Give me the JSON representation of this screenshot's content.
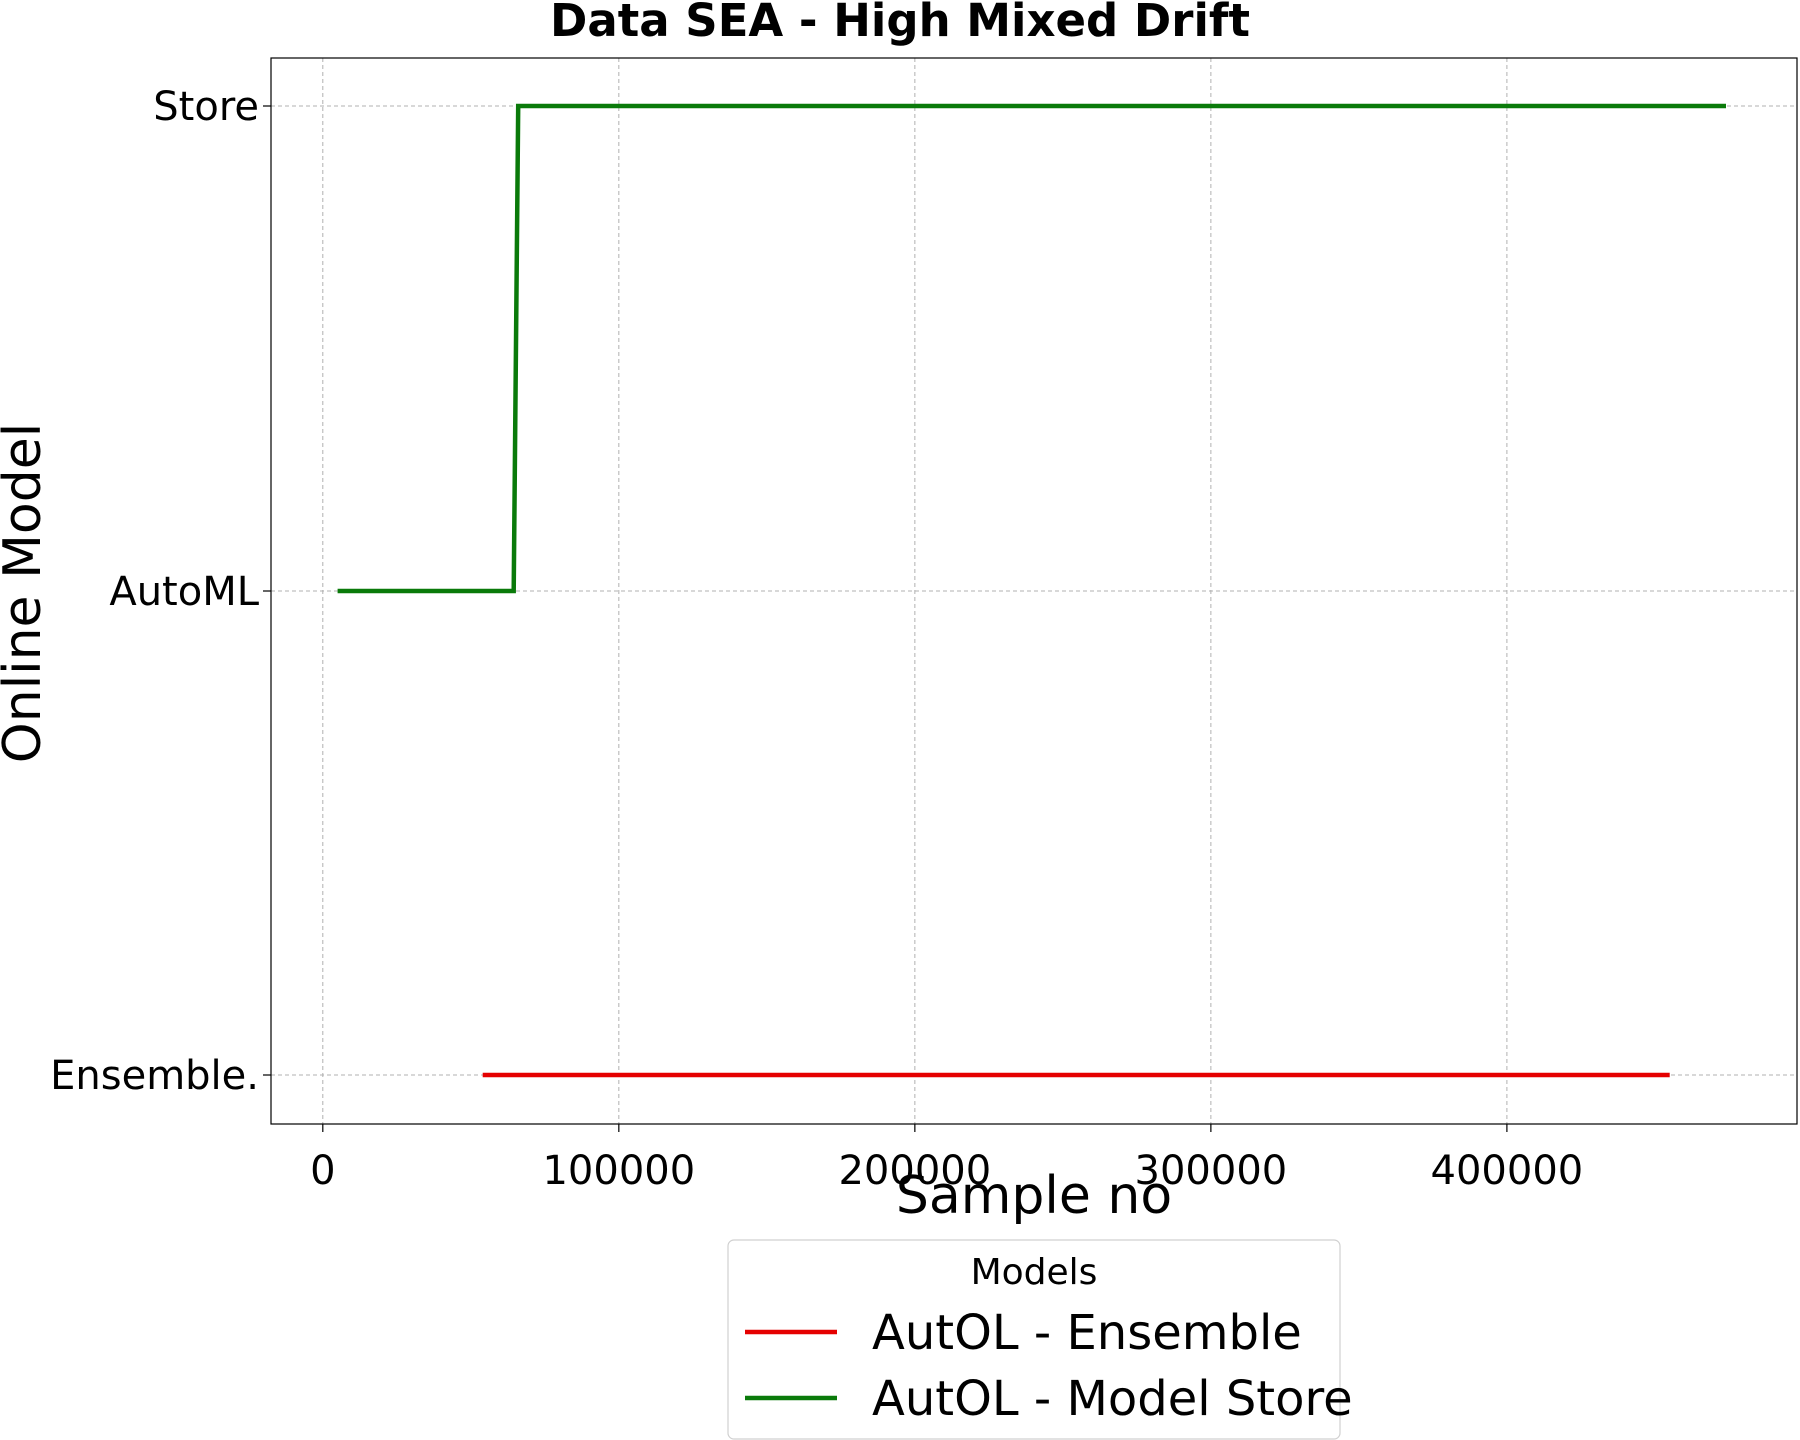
{
  "chart_data": {
    "type": "line",
    "title": "Data SEA - High Mixed Drift",
    "xlabel": "Sample no",
    "ylabel": "Online Model",
    "xlim": [
      -17500,
      498000
    ],
    "x_ticks": [
      0,
      100000,
      200000,
      300000,
      400000
    ],
    "y_categories": [
      "Ensemble.",
      "AutoML",
      "Store"
    ],
    "grid": true,
    "legend": {
      "title": "Models",
      "placement": "bottom-center"
    },
    "series": [
      {
        "name": "AutOL - Ensemble",
        "color": "#e50000",
        "points": [
          [
            54000,
            "Ensemble."
          ],
          [
            455000,
            "Ensemble."
          ]
        ]
      },
      {
        "name": "AutOL - Model Store",
        "color": "#0a7a0a",
        "points": [
          [
            5000,
            "AutoML"
          ],
          [
            64500,
            "AutoML"
          ],
          [
            66000,
            "Store"
          ],
          [
            474000,
            "Store"
          ]
        ]
      }
    ]
  }
}
